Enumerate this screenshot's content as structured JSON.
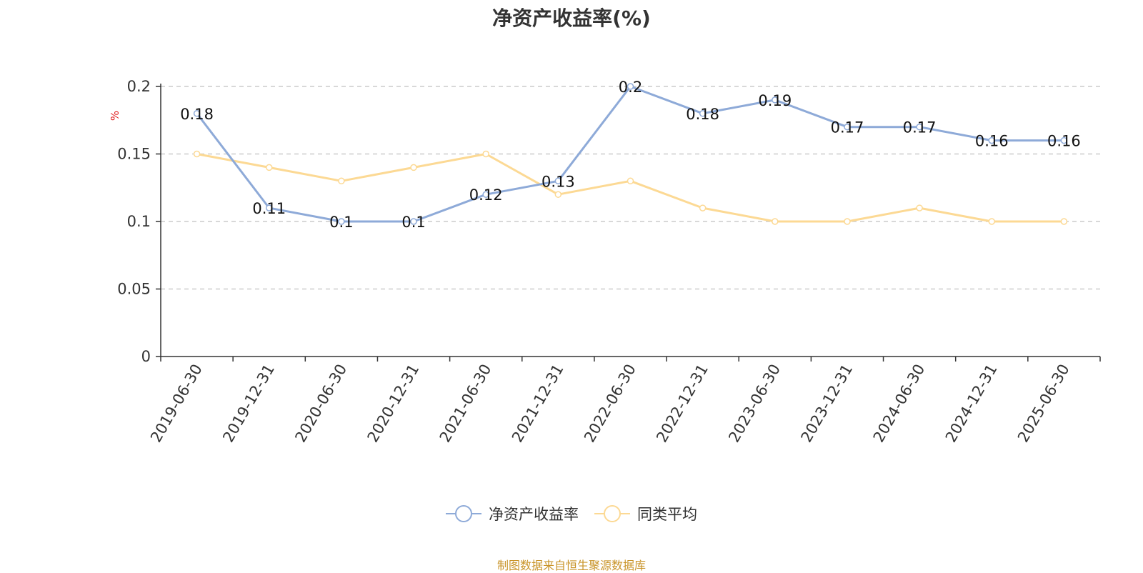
{
  "chart_data": {
    "type": "line",
    "title": "净资产收益率(%)",
    "ylabel": "%",
    "xlabel": "",
    "categories": [
      "2019-06-30",
      "2019-12-31",
      "2020-06-30",
      "2020-12-31",
      "2021-06-30",
      "2021-12-31",
      "2022-06-30",
      "2022-12-31",
      "2023-06-30",
      "2023-12-31",
      "2024-06-30",
      "2024-12-31",
      "2025-06-30"
    ],
    "series": [
      {
        "name": "净资产收益率",
        "color": "#8eaad8",
        "values": [
          0.18,
          0.11,
          0.1,
          0.1,
          0.12,
          0.13,
          0.2,
          0.18,
          0.19,
          0.17,
          0.17,
          0.16,
          0.16
        ],
        "data_labels": true
      },
      {
        "name": "同类平均",
        "color": "#fcd994",
        "values": [
          0.15,
          0.14,
          0.13,
          0.14,
          0.15,
          0.12,
          0.13,
          0.11,
          0.1,
          0.1,
          0.11,
          0.1,
          0.1
        ],
        "data_labels": false
      }
    ],
    "ylim": [
      0,
      0.2
    ],
    "yticks": [
      "0",
      "0.05",
      "0.1",
      "0.15",
      "0.2"
    ],
    "grid": true,
    "legend_position": "bottom"
  },
  "footer": "制图数据来自恒生聚源数据库"
}
